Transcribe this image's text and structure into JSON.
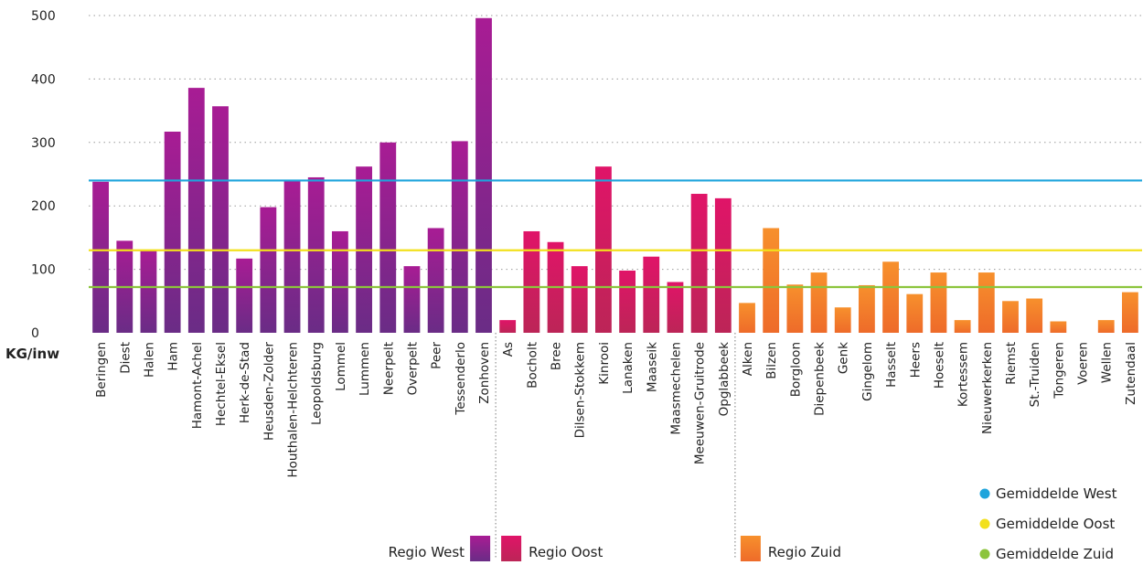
{
  "chart_data": {
    "type": "bar",
    "ylabel": "KG/inw",
    "ylim": [
      0,
      500
    ],
    "yticks": [
      "0",
      "100",
      "200",
      "300",
      "400",
      "500"
    ],
    "grid": "horizontal dotted",
    "groups": [
      {
        "name": "Regio West",
        "color_top": "#a81c94",
        "color_bottom": "#6a2c86",
        "categories": [
          "Beringen",
          "Diest",
          "Halen",
          "Ham",
          "Hamont-Achel",
          "Hechtel-Eksel",
          "Herk-de-Stad",
          "Heusden-Zolder",
          "Houthalen-Helchteren",
          "Leopoldsburg",
          "Lommel",
          "Lummen",
          "Neerpelt",
          "Overpelt",
          "Peer",
          "Tessenderlo",
          "Zonhoven"
        ],
        "values": [
          238,
          145,
          130,
          317,
          386,
          357,
          117,
          198,
          240,
          245,
          160,
          262,
          300,
          105,
          165,
          302,
          496
        ]
      },
      {
        "name": "Regio Oost",
        "color_top": "#e01468",
        "color_bottom": "#bc2557",
        "categories": [
          "As",
          "Bocholt",
          "Bree",
          "Dilsen-Stokkem",
          "Kinrooi",
          "Lanaken",
          "Maaseik",
          "Maasmechelen",
          "Meeuwen-Gruitrode",
          "Opglabbeek"
        ],
        "values": [
          20,
          160,
          143,
          105,
          262,
          98,
          120,
          80,
          219,
          212
        ]
      },
      {
        "name": "Regio Zuid",
        "color_top": "#f7902c",
        "color_bottom": "#ee6b2a",
        "categories": [
          "Alken",
          "Bilzen",
          "Borgloon",
          "Diepenbeek",
          "Genk",
          "Gingelom",
          "Hasselt",
          "Heers",
          "Hoeselt",
          "Kortessem",
          "Nieuwerkerken",
          "Riemst",
          "St.-Truiden",
          "Tongeren",
          "Voeren",
          "Wellen",
          "Zutendaal"
        ],
        "values": [
          47,
          165,
          76,
          95,
          40,
          75,
          112,
          61,
          95,
          20,
          95,
          50,
          54,
          18,
          0,
          20,
          64
        ]
      }
    ],
    "averages": [
      {
        "name": "Gemiddelde West",
        "value": 240,
        "color": "#1ea4dc"
      },
      {
        "name": "Gemiddelde Oost",
        "value": 130,
        "color": "#f2e01c"
      },
      {
        "name": "Gemiddelde Zuid",
        "value": 72,
        "color": "#8cc43c"
      }
    ]
  }
}
